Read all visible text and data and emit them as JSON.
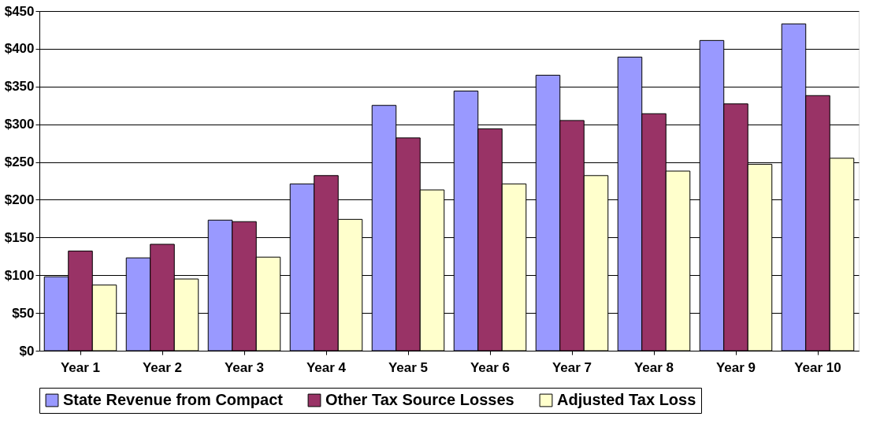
{
  "chart_data": {
    "type": "bar",
    "categories": [
      "Year 1",
      "Year 2",
      "Year 3",
      "Year 4",
      "Year 5",
      "Year 6",
      "Year 7",
      "Year 8",
      "Year 9",
      "Year 10"
    ],
    "series": [
      {
        "name": "State Revenue from Compact",
        "color": "#9999ff",
        "values": [
          98,
          123,
          173,
          221,
          325,
          344,
          365,
          389,
          411,
          433
        ]
      },
      {
        "name": "Other Tax Source Losses",
        "color": "#993366",
        "values": [
          132,
          141,
          171,
          232,
          282,
          294,
          305,
          314,
          327,
          338
        ]
      },
      {
        "name": "Adjusted Tax Loss",
        "color": "#ffffcc",
        "values": [
          87,
          95,
          124,
          174,
          213,
          221,
          232,
          238,
          247,
          255
        ]
      }
    ],
    "ylim": [
      0,
      450
    ],
    "yticks": [
      {
        "value": 0,
        "label": "$0"
      },
      {
        "value": 50,
        "label": "$50"
      },
      {
        "value": 100,
        "label": "$100"
      },
      {
        "value": 150,
        "label": "$150"
      },
      {
        "value": 200,
        "label": "$200"
      },
      {
        "value": 250,
        "label": "$250"
      },
      {
        "value": 300,
        "label": "$300"
      },
      {
        "value": 350,
        "label": "$350"
      },
      {
        "value": 400,
        "label": "$400"
      },
      {
        "value": 450,
        "label": "$450"
      }
    ],
    "grid": "y",
    "legend": "bottom"
  }
}
